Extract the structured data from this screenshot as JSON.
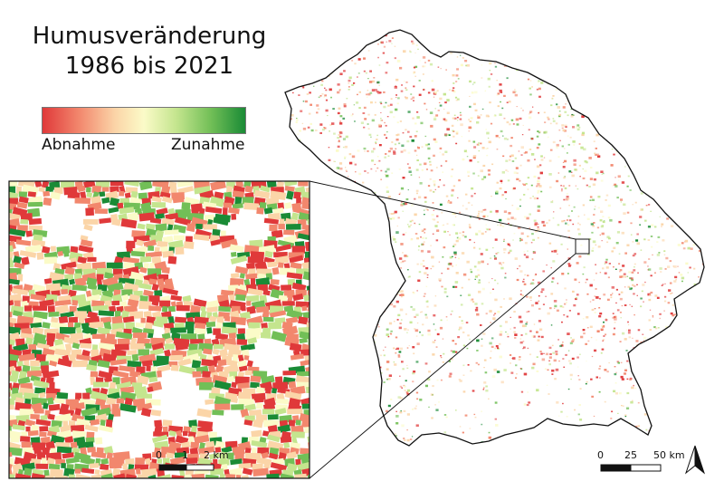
{
  "title_line1": "Humusveränderung",
  "title_line2": "1986 bis 2021",
  "legend": {
    "low_label": "Abnahme",
    "high_label": "Zunahme",
    "colors": [
      "#e0393a",
      "#f2876d",
      "#fbd5a8",
      "#fbfbc8",
      "#c4e58e",
      "#72bf57",
      "#1a8b36"
    ]
  },
  "inset_scale": {
    "ticks": [
      "0",
      "1",
      "2 km"
    ]
  },
  "main_scale": {
    "ticks": [
      "0",
      "25",
      "50 km"
    ]
  },
  "north_arrow": "north-arrow-icon"
}
